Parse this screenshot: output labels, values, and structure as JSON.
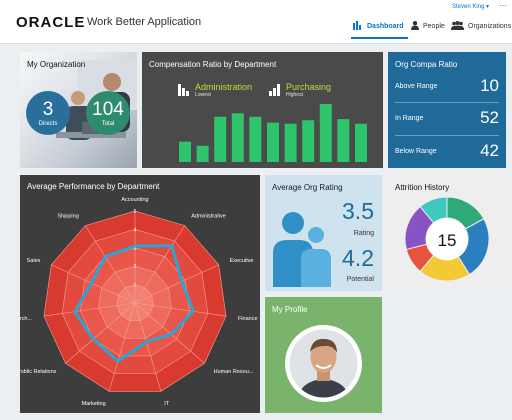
{
  "header": {
    "brand": "ORACLE",
    "app_title": "Work Better Application",
    "user_name": "Steven King ▾",
    "more": "⋯",
    "nav": [
      {
        "label": "Dashboard",
        "icon": "bar-chart-icon",
        "active": true
      },
      {
        "label": "People",
        "icon": "person-icon",
        "active": false
      },
      {
        "label": "Organizations",
        "icon": "group-icon",
        "active": false
      }
    ]
  },
  "my_organization": {
    "title": "My Organization",
    "directs": {
      "value": "3",
      "label": "Directs"
    },
    "total": {
      "value": "104",
      "label": "Total"
    }
  },
  "compensation": {
    "title": "Compensation Ratio by Department",
    "lowest": {
      "name": "Administration",
      "label": "Lowest"
    },
    "highest": {
      "name": "Purchasing",
      "label": "Highest"
    },
    "bar_color": "#2ec46b",
    "bar_values": [
      0.35,
      0.28,
      0.78,
      0.84,
      0.78,
      0.68,
      0.66,
      0.72,
      1.0,
      0.74,
      0.66
    ]
  },
  "compa_ratio": {
    "title": "Org Compa Ratio",
    "rows": [
      {
        "label": "Above Range",
        "value": "10"
      },
      {
        "label": "In Range",
        "value": "52"
      },
      {
        "label": "Below Range",
        "value": "42"
      }
    ]
  },
  "performance": {
    "title": "Average Performance by Department",
    "axes": [
      "Accounting",
      "Administrative",
      "Executive",
      "Finance",
      "Human Resou...",
      "IT",
      "Marketing",
      "Public Relations",
      "Purch...",
      "Sales",
      "Shipping"
    ],
    "scale_labels": [
      "1",
      "2",
      "3",
      "4",
      "5"
    ],
    "series_values": [
      3.1,
      3.7,
      2.8,
      3.2,
      2.6,
      2.2,
      3.3,
      3.0,
      3.3,
      2.6,
      3.0
    ],
    "colors": {
      "bands": "#e8453c",
      "line": "#2aa6d6",
      "background": "#3d3d3d"
    }
  },
  "rating": {
    "title": "Average Org Rating",
    "rating_value": "3.5",
    "rating_label": "Rating",
    "potential_value": "4.2",
    "potential_label": "Potential"
  },
  "attrition": {
    "title": "Attrition History",
    "center_value": "15",
    "segments": [
      {
        "value": 0.17,
        "color": "#2eaa7a"
      },
      {
        "value": 0.24,
        "color": "#2c7fbf"
      },
      {
        "value": 0.2,
        "color": "#f4c933"
      },
      {
        "value": 0.1,
        "color": "#e8533f"
      },
      {
        "value": 0.18,
        "color": "#8854c4"
      },
      {
        "value": 0.11,
        "color": "#3fc8c0"
      }
    ]
  },
  "profile": {
    "title": "My Profile"
  }
}
